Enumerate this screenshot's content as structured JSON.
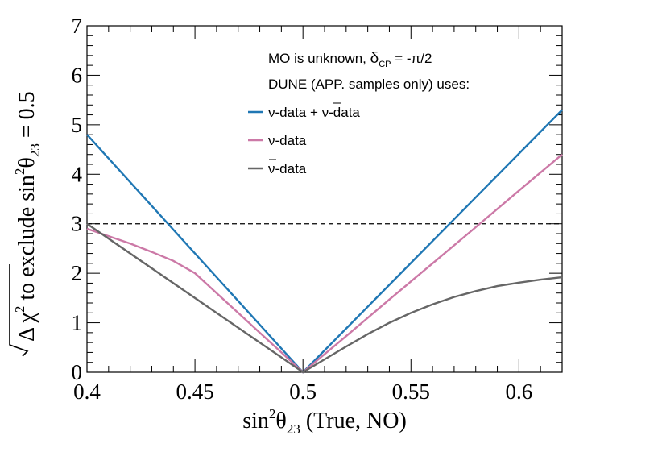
{
  "chart_data": {
    "type": "line",
    "x_title": {
      "prefix": "sin",
      "sup": "2",
      "theta": "θ",
      "sub": "23",
      "suffix": " (True, NO)"
    },
    "y_title": {
      "delta": "Δ χ",
      "sup": "2",
      "text": " to exclude sin",
      "sup2": "2",
      "theta": "θ",
      "sub": "23",
      "tail": " = 0.5"
    },
    "xlim": [
      0.4,
      0.62
    ],
    "ylim": [
      0,
      7
    ],
    "x_ticks": [
      0.4,
      0.45,
      0.5,
      0.55,
      0.6
    ],
    "x_tick_labels": [
      "0.4",
      "0.45",
      "0.5",
      "0.55",
      "0.6"
    ],
    "y_ticks": [
      0,
      1,
      2,
      3,
      4,
      5,
      6,
      7
    ],
    "y_tick_labels": [
      "0",
      "1",
      "2",
      "3",
      "4",
      "5",
      "6",
      "7"
    ],
    "reference_line": {
      "y": 3,
      "style": "dashed"
    },
    "annotation": {
      "line1_prefix": "MO is unknown, ",
      "delta": "δ",
      "cp": "CP",
      "line1_suffix": " = -π/2",
      "line2": "DUNE (APP. samples only) uses:"
    },
    "series": [
      {
        "name": "ν-data + ν̄-data",
        "legend": {
          "nu1": "ν",
          "mid": "-data + ",
          "nu2": "ν",
          "end": "-data"
        },
        "color": "#1f77b4",
        "points": [
          [
            0.4,
            4.8
          ],
          [
            0.5,
            0.0
          ],
          [
            0.62,
            5.3
          ]
        ]
      },
      {
        "name": "ν-data",
        "legend": {
          "nu1": "ν",
          "end": "-data"
        },
        "color": "#cc79a7",
        "points": [
          [
            0.4,
            2.9
          ],
          [
            0.41,
            2.75
          ],
          [
            0.42,
            2.6
          ],
          [
            0.43,
            2.43
          ],
          [
            0.44,
            2.25
          ],
          [
            0.45,
            2.0
          ],
          [
            0.46,
            1.6
          ],
          [
            0.47,
            1.2
          ],
          [
            0.48,
            0.8
          ],
          [
            0.49,
            0.4
          ],
          [
            0.5,
            0.0
          ],
          [
            0.52,
            0.73
          ],
          [
            0.54,
            1.47
          ],
          [
            0.56,
            2.2
          ],
          [
            0.58,
            2.93
          ],
          [
            0.6,
            3.67
          ],
          [
            0.62,
            4.4
          ]
        ]
      },
      {
        "name": "ν̄-data",
        "legend": {
          "nu2": "ν",
          "end": "-data"
        },
        "color": "#666666",
        "points": [
          [
            0.4,
            3.0
          ],
          [
            0.45,
            1.5
          ],
          [
            0.5,
            0.0
          ],
          [
            0.51,
            0.26
          ],
          [
            0.52,
            0.52
          ],
          [
            0.53,
            0.77
          ],
          [
            0.54,
            1.0
          ],
          [
            0.55,
            1.2
          ],
          [
            0.56,
            1.37
          ],
          [
            0.57,
            1.52
          ],
          [
            0.58,
            1.64
          ],
          [
            0.59,
            1.74
          ],
          [
            0.6,
            1.81
          ],
          [
            0.61,
            1.87
          ],
          [
            0.62,
            1.92
          ]
        ]
      }
    ]
  }
}
